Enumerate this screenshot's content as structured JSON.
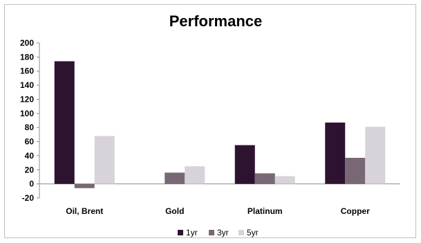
{
  "chart_data": {
    "type": "bar",
    "title": "Performance",
    "categories": [
      "Oil, Brent",
      "Gold",
      "Platinum",
      "Copper"
    ],
    "series": [
      {
        "name": "1yr",
        "color": "#2e1331",
        "values": [
          174,
          0,
          55,
          87
        ]
      },
      {
        "name": "3yr",
        "color": "#786876",
        "values": [
          -6,
          16,
          15,
          37
        ]
      },
      {
        "name": "5yr",
        "color": "#d8d3da",
        "values": [
          68,
          25,
          11,
          81
        ]
      }
    ],
    "ylim": [
      -20,
      200
    ],
    "yticks": [
      200,
      180,
      160,
      140,
      120,
      100,
      80,
      60,
      40,
      20,
      0,
      -20
    ],
    "grid": false,
    "legend_position": "bottom"
  }
}
